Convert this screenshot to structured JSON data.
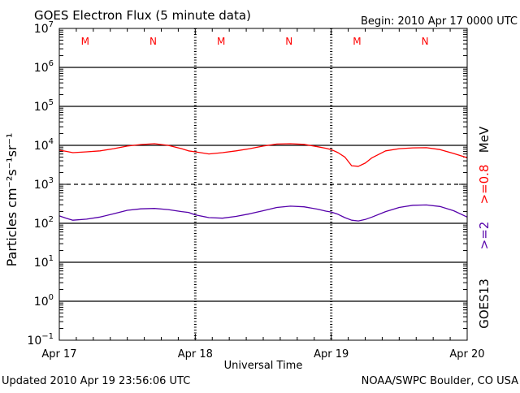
{
  "chart_data": {
    "type": "line",
    "title": "GOES Electron Flux (5 minute data)",
    "begin_label": "Begin: 2010 Apr 17 0000 UTC",
    "xlabel": "Universal Time",
    "ylabel": "Particles cm⁻²s⁻¹sr⁻¹",
    "y_scale": "log",
    "ylim": [
      0.1,
      10000000
    ],
    "y_ticks": [
      {
        "value": 10000000,
        "base": "10",
        "exp": "7"
      },
      {
        "value": 1000000,
        "base": "10",
        "exp": "6"
      },
      {
        "value": 100000,
        "base": "10",
        "exp": "5"
      },
      {
        "value": 10000,
        "base": "10",
        "exp": "4"
      },
      {
        "value": 1000,
        "base": "10",
        "exp": "3"
      },
      {
        "value": 100,
        "base": "10",
        "exp": "2"
      },
      {
        "value": 10,
        "base": "10",
        "exp": "1"
      },
      {
        "value": 1,
        "base": "10",
        "exp": "0"
      },
      {
        "value": 0.1,
        "base": "10",
        "exp": "−1"
      }
    ],
    "x_tick_labels": [
      "Apr 17",
      "Apr 18",
      "Apr 19",
      "Apr 20"
    ],
    "x_range_days": [
      0,
      3
    ],
    "gridlines": [
      {
        "value": 1000000,
        "style": "solid"
      },
      {
        "value": 100000,
        "style": "solid"
      },
      {
        "value": 10000,
        "style": "solid"
      },
      {
        "value": 1000,
        "style": "dashed"
      },
      {
        "value": 100,
        "style": "solid"
      },
      {
        "value": 10,
        "style": "solid"
      },
      {
        "value": 1,
        "style": "solid"
      }
    ],
    "mn_markers": [
      {
        "label": "M",
        "day": 0.19
      },
      {
        "label": "N",
        "day": 0.69
      },
      {
        "label": "M",
        "day": 1.19
      },
      {
        "label": "N",
        "day": 1.69
      },
      {
        "label": "M",
        "day": 2.19
      },
      {
        "label": "N",
        "day": 2.69
      }
    ],
    "series": [
      {
        "name": ">=0.8 MeV",
        "color": "#ff0000",
        "points": [
          [
            0.0,
            7500
          ],
          [
            0.05,
            7000
          ],
          [
            0.1,
            6500
          ],
          [
            0.2,
            6800
          ],
          [
            0.3,
            7200
          ],
          [
            0.4,
            8200
          ],
          [
            0.5,
            9600
          ],
          [
            0.6,
            10500
          ],
          [
            0.7,
            11000
          ],
          [
            0.8,
            10000
          ],
          [
            0.9,
            8200
          ],
          [
            0.95,
            7200
          ],
          [
            1.0,
            6800
          ],
          [
            1.1,
            6000
          ],
          [
            1.2,
            6500
          ],
          [
            1.3,
            7200
          ],
          [
            1.4,
            8200
          ],
          [
            1.5,
            9600
          ],
          [
            1.6,
            10800
          ],
          [
            1.7,
            11000
          ],
          [
            1.8,
            10600
          ],
          [
            1.9,
            9200
          ],
          [
            1.96,
            8400
          ],
          [
            2.0,
            7800
          ],
          [
            2.05,
            6500
          ],
          [
            2.1,
            5000
          ],
          [
            2.15,
            3000
          ],
          [
            2.2,
            2900
          ],
          [
            2.25,
            3500
          ],
          [
            2.3,
            4800
          ],
          [
            2.4,
            7200
          ],
          [
            2.5,
            8200
          ],
          [
            2.6,
            8600
          ],
          [
            2.7,
            8700
          ],
          [
            2.8,
            7800
          ],
          [
            2.9,
            6200
          ],
          [
            3.0,
            4800
          ]
        ]
      },
      {
        "name": ">=2 MeV",
        "color": "#5500aa",
        "points": [
          [
            0.0,
            155
          ],
          [
            0.05,
            135
          ],
          [
            0.1,
            120
          ],
          [
            0.2,
            128
          ],
          [
            0.3,
            145
          ],
          [
            0.4,
            175
          ],
          [
            0.5,
            215
          ],
          [
            0.6,
            235
          ],
          [
            0.7,
            240
          ],
          [
            0.8,
            225
          ],
          [
            0.9,
            200
          ],
          [
            0.95,
            190
          ],
          [
            1.0,
            165
          ],
          [
            1.1,
            140
          ],
          [
            1.2,
            135
          ],
          [
            1.3,
            150
          ],
          [
            1.4,
            175
          ],
          [
            1.5,
            210
          ],
          [
            1.6,
            255
          ],
          [
            1.7,
            275
          ],
          [
            1.8,
            265
          ],
          [
            1.9,
            230
          ],
          [
            1.96,
            205
          ],
          [
            2.0,
            195
          ],
          [
            2.05,
            170
          ],
          [
            2.1,
            140
          ],
          [
            2.15,
            120
          ],
          [
            2.2,
            115
          ],
          [
            2.25,
            125
          ],
          [
            2.3,
            145
          ],
          [
            2.4,
            200
          ],
          [
            2.5,
            255
          ],
          [
            2.6,
            290
          ],
          [
            2.7,
            295
          ],
          [
            2.8,
            270
          ],
          [
            2.9,
            210
          ],
          [
            3.0,
            145
          ]
        ]
      }
    ],
    "right_labels": {
      "mev_label": "MeV",
      "hi_energy_label": ">=0.8",
      "lo_energy_label": ">=2",
      "satellite": "GOES13"
    },
    "footer_left": "Updated 2010 Apr 19 23:56:06 UTC",
    "footer_right": "NOAA/SWPC Boulder, CO USA",
    "colors": {
      "hi": "#ff0000",
      "lo": "#5500aa",
      "axis": "#000000"
    }
  }
}
